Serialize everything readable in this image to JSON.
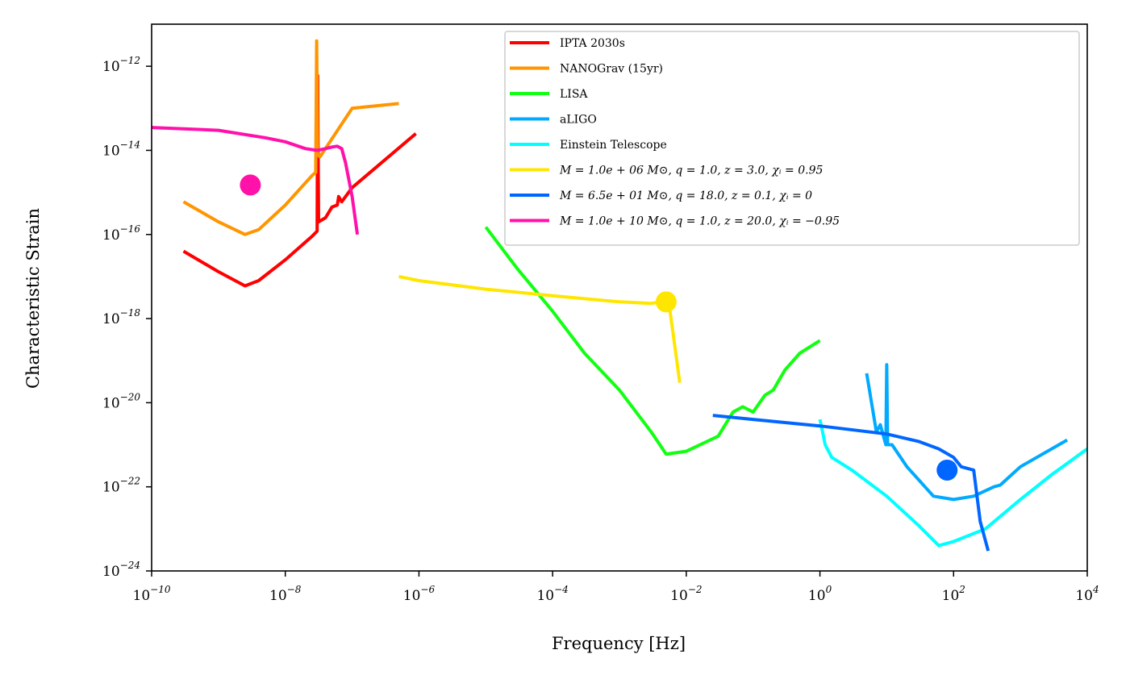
{
  "chart_data": {
    "type": "line",
    "xscale": "log",
    "yscale": "log",
    "xlim": [
      1e-10,
      10000.0
    ],
    "ylim": [
      1e-24,
      1e-11
    ],
    "xlabel": "Frequency [Hz]",
    "ylabel": "Characteristic Strain",
    "x_tick_labels": [
      "10^-10",
      "10^-8",
      "10^-6",
      "10^-4",
      "10^-2",
      "10^0",
      "10^2",
      "10^4"
    ],
    "y_tick_labels": [
      "10^-24",
      "10^-22",
      "10^-20",
      "10^-18",
      "10^-16",
      "10^-14",
      "10^-12"
    ],
    "legend_position": "top-right",
    "grid": false,
    "series": [
      {
        "name": "IPTA  2030s",
        "kind": "sensitivity",
        "color": "#ff0000",
        "points": [
          [
            3e-10,
            4e-17
          ],
          [
            1e-09,
            1.3e-17
          ],
          [
            2.5e-09,
            6e-18
          ],
          [
            4e-09,
            8e-18
          ],
          [
            1e-08,
            2.5e-17
          ],
          [
            2.5e-08,
            9e-17
          ],
          [
            3e-08,
            1.2e-16
          ],
          [
            3.05e-08,
            6e-13
          ],
          [
            3.15e-08,
            2e-16
          ],
          [
            4e-08,
            2.5e-16
          ],
          [
            5e-08,
            4.5e-16
          ],
          [
            6e-08,
            5e-16
          ],
          [
            6.3e-08,
            8e-16
          ],
          [
            7e-08,
            6e-16
          ],
          [
            1e-07,
            1.3e-15
          ],
          [
            9e-07,
            2.5e-14
          ]
        ]
      },
      {
        "name": "NANOGrav (15yr)",
        "kind": "sensitivity",
        "color": "#ff9500",
        "points": [
          [
            3e-10,
            6e-16
          ],
          [
            1e-09,
            2e-16
          ],
          [
            2.5e-09,
            1e-16
          ],
          [
            4e-09,
            1.3e-16
          ],
          [
            1e-08,
            5e-16
          ],
          [
            2.5e-08,
            2.5e-15
          ],
          [
            2.85e-08,
            3e-15
          ],
          [
            2.95e-08,
            4e-12
          ],
          [
            3.05e-08,
            8e-15
          ],
          [
            3.3e-08,
            7e-15
          ],
          [
            1e-07,
            1e-13
          ],
          [
            5e-07,
            1.3e-13
          ]
        ]
      },
      {
        "name": "LISA",
        "kind": "sensitivity",
        "color": "#11ff11",
        "points": [
          [
            1e-05,
            1.5e-16
          ],
          [
            3e-05,
            1.5e-17
          ],
          [
            0.0001,
            1.5e-18
          ],
          [
            0.0003,
            1.5e-19
          ],
          [
            0.001,
            2e-20
          ],
          [
            0.003,
            2e-21
          ],
          [
            0.005,
            6e-22
          ],
          [
            0.01,
            7e-22
          ],
          [
            0.03,
            1.6e-21
          ],
          [
            0.05,
            6e-21
          ],
          [
            0.07,
            8e-21
          ],
          [
            0.1,
            6e-21
          ],
          [
            0.15,
            1.5e-20
          ],
          [
            0.2,
            2e-20
          ],
          [
            0.3,
            6e-20
          ],
          [
            0.5,
            1.5e-19
          ],
          [
            1,
            3e-19
          ]
        ]
      },
      {
        "name": "aLIGO",
        "kind": "sensitivity",
        "color": "#00aaff",
        "points": [
          [
            5,
            5e-20
          ],
          [
            7,
            2e-21
          ],
          [
            8,
            3e-21
          ],
          [
            9.7,
            1e-21
          ],
          [
            10,
            8e-20
          ],
          [
            10.3,
            1e-21
          ],
          [
            12,
            1e-21
          ],
          [
            20,
            3e-22
          ],
          [
            50,
            6e-23
          ],
          [
            100,
            5e-23
          ],
          [
            200,
            6e-23
          ],
          [
            400,
            1e-22
          ],
          [
            500,
            1.1e-22
          ],
          [
            1000,
            3e-22
          ],
          [
            5000,
            1.3e-21
          ]
        ]
      },
      {
        "name": "Einstein Telescope",
        "kind": "sensitivity",
        "color": "#00ffff",
        "points": [
          [
            1,
            4e-21
          ],
          [
            1.2,
            1e-21
          ],
          [
            1.5,
            5e-22
          ],
          [
            3,
            2.5e-22
          ],
          [
            10,
            6e-23
          ],
          [
            30,
            1.2e-23
          ],
          [
            60,
            4e-24
          ],
          [
            100,
            5e-24
          ],
          [
            300,
            1e-23
          ],
          [
            1000,
            5e-23
          ],
          [
            3000,
            2e-22
          ],
          [
            10000,
            8e-22
          ]
        ]
      },
      {
        "name": "M = 1.0e + 06 M⊙, q = 1.0, z = 3.0, χᵢ = 0.95",
        "kind": "source",
        "color": "#ffe600",
        "points": [
          [
            5e-07,
            1e-17
          ],
          [
            1e-06,
            8e-18
          ],
          [
            1e-05,
            5e-18
          ],
          [
            0.0001,
            3.5e-18
          ],
          [
            0.001,
            2.5e-18
          ],
          [
            0.003,
            2.3e-18
          ],
          [
            0.005,
            2.6e-18
          ],
          [
            0.0055,
            2.4e-18
          ],
          [
            0.008,
            3e-20
          ]
        ],
        "marker": [
          0.005,
          2.5e-18
        ]
      },
      {
        "name": "M = 6.5e + 01 M⊙, q = 18.0, z = 0.1, χᵢ = 0",
        "kind": "source",
        "color": "#0066ff",
        "points": [
          [
            0.025,
            5e-21
          ],
          [
            0.1,
            4e-21
          ],
          [
            1,
            2.8e-21
          ],
          [
            10,
            1.8e-21
          ],
          [
            30,
            1.2e-21
          ],
          [
            60,
            8e-22
          ],
          [
            100,
            5e-22
          ],
          [
            130,
            3e-22
          ],
          [
            200,
            2.5e-22
          ],
          [
            250,
            1.5e-23
          ],
          [
            330,
            3e-24
          ]
        ],
        "marker": [
          80,
          2.5e-22
        ]
      },
      {
        "name": "M = 1.0e + 10 M⊙, q = 1.0, z = 20.0, χᵢ = −0.95",
        "kind": "source",
        "color": "#ff11aa",
        "points": [
          [
            1e-10,
            3.5e-14
          ],
          [
            1e-09,
            3e-14
          ],
          [
            5e-09,
            2e-14
          ],
          [
            1e-08,
            1.6e-14
          ],
          [
            2e-08,
            1.1e-14
          ],
          [
            3e-08,
            1e-14
          ],
          [
            4e-08,
            1.1e-14
          ],
          [
            5e-08,
            1.2e-14
          ],
          [
            6e-08,
            1.25e-14
          ],
          [
            7e-08,
            1.1e-14
          ],
          [
            8e-08,
            5e-15
          ],
          [
            1e-07,
            8e-16
          ],
          [
            1.2e-07,
            1e-16
          ]
        ],
        "marker": [
          3e-09,
          1.5e-15
        ]
      }
    ]
  }
}
